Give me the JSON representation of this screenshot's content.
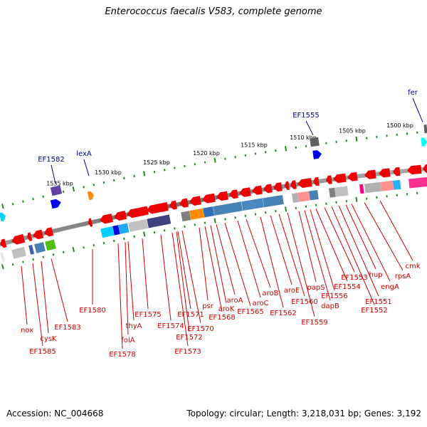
{
  "title": "Enterococcus faecalis V583, complete genome",
  "footer": {
    "accession": "Accession: NC_004668",
    "topology": "Topology: circular; Length: 3,218,031 bp; Genes: 3,192"
  },
  "scale_labels": [
    "1535 kbp",
    "1530 kbp",
    "1525 kbp",
    "1520 kbp",
    "1515 kbp",
    "1510 kbp",
    "1505 kbp",
    "1500 kbp"
  ],
  "top_gene_labels": [
    "EF1582",
    "lexA",
    "EF1555",
    "fer"
  ],
  "bottom_gene_labels": [
    "nox",
    "EF1585",
    "cysK",
    "EF1583",
    "EF1580",
    "EF1578",
    "folA",
    "thyA",
    "EF1575",
    "EF1574",
    "EF1573",
    "EF1572",
    "EF1571",
    "EF1570",
    "psr",
    "EF1568",
    "aroK",
    "aroA",
    "EF1565",
    "aroC",
    "aroB",
    "EF1562",
    "aroE",
    "EF1560",
    "EF1559",
    "papS",
    "dapB",
    "EF1556",
    "EF1554",
    "EF1553",
    "EF1552",
    "EF1551",
    "hup",
    "engA",
    "rpsA",
    "cmk"
  ],
  "colors": {
    "forward_gene": "#ee0000",
    "label_top": "#00008b",
    "label_bottom": "#cc0000",
    "backbone": "#808080",
    "ticks": "#228b22"
  }
}
